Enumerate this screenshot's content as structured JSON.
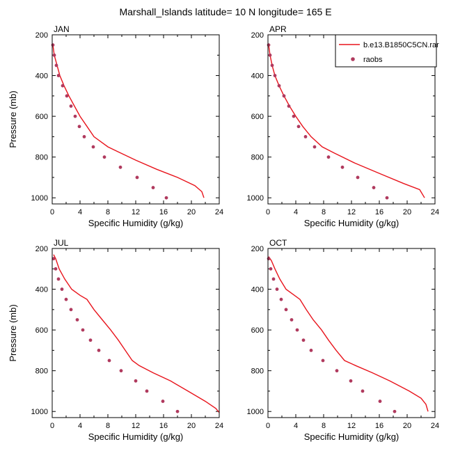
{
  "title": "Marshall_Islands  latitude= 10 N longitude= 165 E",
  "colors": {
    "model": "#e8141c",
    "obs": "#b03a5e"
  },
  "legend": {
    "model": "b.e13.B1850C5CN.rar",
    "obs": "raobs"
  },
  "chart_data": [
    {
      "type": "line",
      "label": "JAN",
      "xlabel": "Specific Humidity (g/kg)",
      "ylabel": "Pressure (mb)",
      "xlim": [
        0,
        24
      ],
      "ylim": [
        200,
        1030
      ],
      "y_reversed": true,
      "x_ticks": [
        0,
        4,
        8,
        12,
        16,
        20,
        24
      ],
      "y_ticks": [
        200,
        400,
        600,
        800,
        1000
      ],
      "series": [
        {
          "kind": "line",
          "points": [
            [
              0.1,
              250
            ],
            [
              0.3,
              300
            ],
            [
              0.7,
              350
            ],
            [
              1.1,
              400
            ],
            [
              1.7,
              450
            ],
            [
              2.4,
              500
            ],
            [
              3.2,
              550
            ],
            [
              4.0,
              600
            ],
            [
              5.0,
              650
            ],
            [
              6.0,
              700
            ],
            [
              8.0,
              750
            ],
            [
              9.5,
              775
            ],
            [
              12.0,
              815
            ],
            [
              15.0,
              860
            ],
            [
              18.0,
              900
            ],
            [
              20.5,
              940
            ],
            [
              21.5,
              970
            ],
            [
              21.8,
              1000
            ]
          ]
        },
        {
          "kind": "scatter",
          "points": [
            [
              0.1,
              250
            ],
            [
              0.3,
              300
            ],
            [
              0.6,
              350
            ],
            [
              0.9,
              400
            ],
            [
              1.5,
              450
            ],
            [
              2.1,
              500
            ],
            [
              2.7,
              550
            ],
            [
              3.3,
              600
            ],
            [
              3.9,
              650
            ],
            [
              4.6,
              700
            ],
            [
              5.9,
              750
            ],
            [
              7.5,
              800
            ],
            [
              9.8,
              850
            ],
            [
              12.2,
              900
            ],
            [
              14.5,
              950
            ],
            [
              16.4,
              1000
            ]
          ]
        }
      ]
    },
    {
      "type": "line",
      "label": "APR",
      "xlabel": "Specific Humidity (g/kg)",
      "ylabel": "",
      "xlim": [
        0,
        24
      ],
      "ylim": [
        200,
        1030
      ],
      "y_reversed": true,
      "x_ticks": [
        0,
        4,
        8,
        12,
        16,
        20,
        24
      ],
      "y_ticks": [
        200,
        400,
        600,
        800,
        1000
      ],
      "series": [
        {
          "kind": "line",
          "points": [
            [
              0.1,
              250
            ],
            [
              0.3,
              300
            ],
            [
              0.6,
              350
            ],
            [
              1.0,
              400
            ],
            [
              1.6,
              450
            ],
            [
              2.3,
              500
            ],
            [
              3.1,
              550
            ],
            [
              4.0,
              600
            ],
            [
              5.0,
              650
            ],
            [
              6.2,
              700
            ],
            [
              7.8,
              750
            ],
            [
              9.5,
              780
            ],
            [
              12.5,
              830
            ],
            [
              16.0,
              880
            ],
            [
              19.5,
              930
            ],
            [
              21.8,
              960
            ],
            [
              22.5,
              1000
            ]
          ]
        },
        {
          "kind": "scatter",
          "points": [
            [
              0.1,
              250
            ],
            [
              0.3,
              300
            ],
            [
              0.6,
              350
            ],
            [
              1.0,
              400
            ],
            [
              1.6,
              450
            ],
            [
              2.3,
              500
            ],
            [
              3.0,
              550
            ],
            [
              3.7,
              600
            ],
            [
              4.4,
              650
            ],
            [
              5.4,
              700
            ],
            [
              6.7,
              750
            ],
            [
              8.7,
              800
            ],
            [
              10.7,
              850
            ],
            [
              12.9,
              900
            ],
            [
              15.2,
              950
            ],
            [
              17.1,
              1000
            ]
          ]
        }
      ]
    },
    {
      "type": "line",
      "label": "JUL",
      "xlabel": "Specific Humidity (g/kg)",
      "ylabel": "Pressure (mb)",
      "xlim": [
        0,
        24
      ],
      "ylim": [
        200,
        1030
      ],
      "y_reversed": true,
      "x_ticks": [
        0,
        4,
        8,
        12,
        16,
        20,
        24
      ],
      "y_ticks": [
        200,
        400,
        600,
        800,
        1000
      ],
      "series": [
        {
          "kind": "line",
          "points": [
            [
              0.2,
              230
            ],
            [
              0.5,
              250
            ],
            [
              1.0,
              300
            ],
            [
              1.8,
              350
            ],
            [
              2.8,
              400
            ],
            [
              4.0,
              430
            ],
            [
              5.0,
              450
            ],
            [
              6.0,
              500
            ],
            [
              7.2,
              550
            ],
            [
              8.4,
              600
            ],
            [
              9.5,
              650
            ],
            [
              10.5,
              700
            ],
            [
              11.5,
              750
            ],
            [
              12.5,
              775
            ],
            [
              14.5,
              810
            ],
            [
              17.0,
              850
            ],
            [
              19.5,
              900
            ],
            [
              22.0,
              950
            ],
            [
              23.5,
              985
            ],
            [
              24.0,
              1005
            ]
          ]
        },
        {
          "kind": "scatter",
          "points": [
            [
              0.2,
              250
            ],
            [
              0.5,
              300
            ],
            [
              0.9,
              350
            ],
            [
              1.4,
              400
            ],
            [
              2.0,
              450
            ],
            [
              2.7,
              500
            ],
            [
              3.6,
              550
            ],
            [
              4.4,
              600
            ],
            [
              5.5,
              650
            ],
            [
              6.7,
              700
            ],
            [
              8.2,
              750
            ],
            [
              9.9,
              800
            ],
            [
              12.0,
              850
            ],
            [
              13.6,
              900
            ],
            [
              15.9,
              950
            ],
            [
              18.0,
              1000
            ]
          ]
        }
      ]
    },
    {
      "type": "line",
      "label": "OCT",
      "xlabel": "Specific Humidity (g/kg)",
      "ylabel": "",
      "xlim": [
        0,
        24
      ],
      "ylim": [
        200,
        1030
      ],
      "y_reversed": true,
      "x_ticks": [
        0,
        4,
        8,
        12,
        16,
        20,
        24
      ],
      "y_ticks": [
        200,
        400,
        600,
        800,
        1000
      ],
      "series": [
        {
          "kind": "line",
          "points": [
            [
              0.1,
              240
            ],
            [
              0.5,
              260
            ],
            [
              1.0,
              300
            ],
            [
              1.7,
              350
            ],
            [
              2.6,
              400
            ],
            [
              3.8,
              430
            ],
            [
              4.6,
              450
            ],
            [
              5.5,
              500
            ],
            [
              6.5,
              550
            ],
            [
              7.7,
              600
            ],
            [
              8.7,
              650
            ],
            [
              9.8,
              700
            ],
            [
              11.0,
              750
            ],
            [
              12.6,
              775
            ],
            [
              15.0,
              810
            ],
            [
              17.5,
              850
            ],
            [
              20.3,
              900
            ],
            [
              22.0,
              935
            ],
            [
              22.7,
              965
            ],
            [
              23.0,
              1000
            ]
          ]
        },
        {
          "kind": "scatter",
          "points": [
            [
              0.1,
              250
            ],
            [
              0.4,
              300
            ],
            [
              0.8,
              350
            ],
            [
              1.3,
              400
            ],
            [
              1.9,
              450
            ],
            [
              2.6,
              500
            ],
            [
              3.4,
              550
            ],
            [
              4.2,
              600
            ],
            [
              5.1,
              650
            ],
            [
              6.2,
              700
            ],
            [
              7.9,
              750
            ],
            [
              9.9,
              800
            ],
            [
              11.9,
              850
            ],
            [
              13.6,
              900
            ],
            [
              16.1,
              950
            ],
            [
              18.2,
              1000
            ]
          ]
        }
      ]
    }
  ]
}
